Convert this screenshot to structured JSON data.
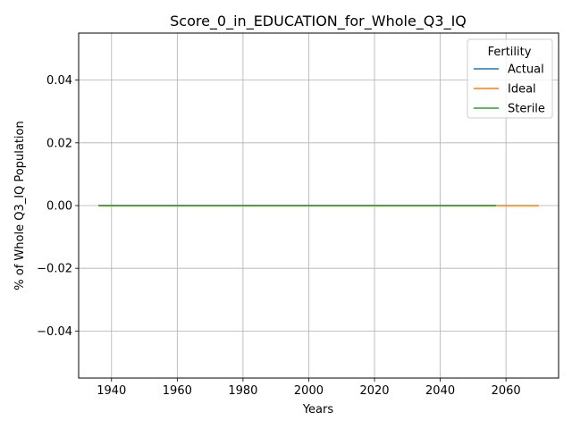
{
  "chart_data": {
    "type": "line",
    "title": "Score_0_in_EDUCATION_for_Whole_Q3_IQ",
    "xlabel": "Years",
    "ylabel": "% of Whole Q3_IQ Population",
    "xlim": [
      1930,
      2076
    ],
    "ylim": [
      -0.055,
      0.055
    ],
    "xticks": [
      "1940",
      "1960",
      "1980",
      "2000",
      "2020",
      "2040",
      "2060"
    ],
    "xtick_values": [
      1940,
      1960,
      1980,
      2000,
      2020,
      2040,
      2060
    ],
    "yticks": [
      "−0.04",
      "−0.02",
      "0.00",
      "0.02",
      "0.04"
    ],
    "ytick_values": [
      -0.04,
      -0.02,
      0.0,
      0.02,
      0.04
    ],
    "grid": true,
    "legend": {
      "title": "Fertility",
      "placement": "top-right"
    },
    "series": [
      {
        "name": "Actual",
        "color": "#1f77b4",
        "x": [
          1936,
          2057
        ],
        "y": [
          0,
          0
        ]
      },
      {
        "name": "Ideal",
        "color": "#ff7f0e",
        "x": [
          1936,
          2070
        ],
        "y": [
          0,
          0
        ]
      },
      {
        "name": "Sterile",
        "color": "#2ca02c",
        "x": [
          1936,
          2057
        ],
        "y": [
          0,
          0
        ]
      }
    ]
  }
}
